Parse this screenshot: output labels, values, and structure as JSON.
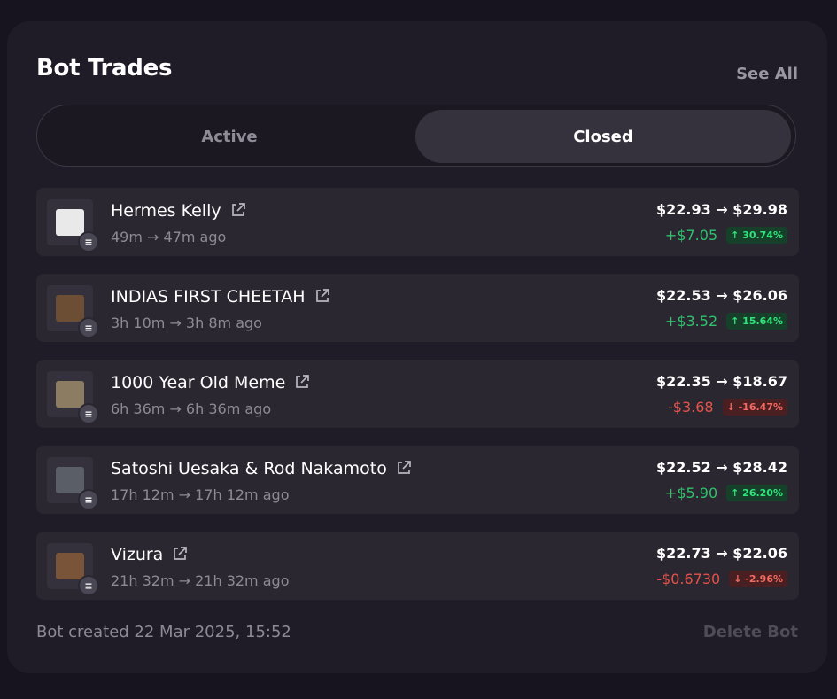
{
  "header": {
    "title": "Bot Trades",
    "see_all": "See All"
  },
  "tabs": {
    "active": "Active",
    "closed": "Closed",
    "selected": "closed"
  },
  "trades": [
    {
      "name": "Hermes Kelly",
      "time": "49m → 47m ago",
      "prices": "$22.93 → $29.98",
      "pnl": "+$7.05",
      "pct": "↑ 30.74%",
      "direction": "up",
      "thumb_color": "#e9e9e9"
    },
    {
      "name": "INDIAS FIRST CHEETAH",
      "time": "3h 10m → 3h 8m ago",
      "prices": "$22.53 → $26.06",
      "pnl": "+$3.52",
      "pct": "↑ 15.64%",
      "direction": "up",
      "thumb_color": "#6b4e34"
    },
    {
      "name": "1000 Year Old Meme",
      "time": "6h 36m → 6h 36m ago",
      "prices": "$22.35 → $18.67",
      "pnl": "-$3.68",
      "pct": "↓ -16.47%",
      "direction": "down",
      "thumb_color": "#8c7d62"
    },
    {
      "name": "Satoshi Uesaka & Rod Nakamoto",
      "time": "17h 12m → 17h 12m ago",
      "prices": "$22.52 → $28.42",
      "pnl": "+$5.90",
      "pct": "↑ 26.20%",
      "direction": "up",
      "thumb_color": "#5a5e66"
    },
    {
      "name": "Vizura",
      "time": "21h 32m → 21h 32m ago",
      "prices": "$22.73 → $22.06",
      "pnl": "-$0.6730",
      "pct": "↓ -2.96%",
      "direction": "down",
      "thumb_color": "#7a5438"
    }
  ],
  "chain_badge": "≡",
  "footer": {
    "created": "Bot created 22 Mar 2025, 15:52",
    "delete": "Delete Bot"
  }
}
